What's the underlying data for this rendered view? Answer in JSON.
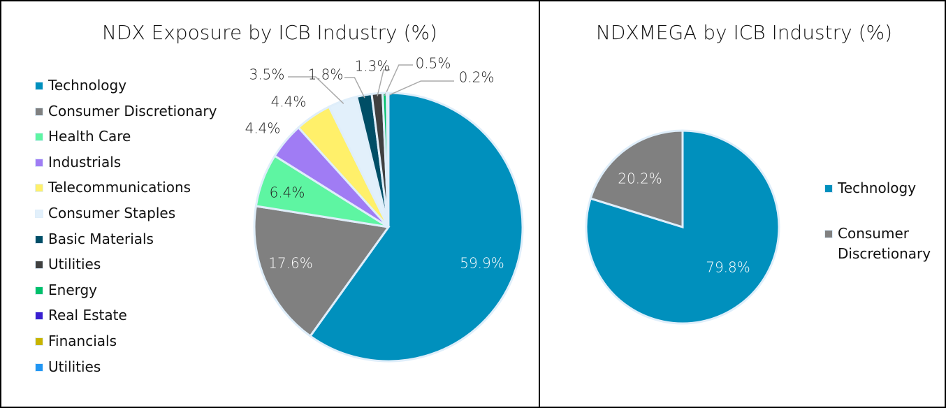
{
  "chart_data": [
    {
      "type": "pie",
      "title": "NDX Exposure by ICB Industry (%)",
      "categories": [
        "Technology",
        "Consumer Discretionary",
        "Health Care",
        "Industrials",
        "Telecommunications",
        "Consumer Staples",
        "Basic Materials",
        "Utilities",
        "Energy",
        "Real Estate",
        "Financials",
        "Utilities"
      ],
      "values": [
        59.9,
        17.6,
        6.4,
        4.4,
        4.4,
        3.5,
        1.8,
        1.3,
        0.5,
        0.2,
        0,
        0
      ],
      "value_labels": [
        "59.9%",
        "17.6%",
        "6.4%",
        "4.4%",
        "4.4%",
        "3.5%",
        "1.8%",
        "1.3%",
        "0.5%",
        "0.2%",
        null,
        null
      ],
      "colors": [
        "#0090bd",
        "#808080",
        "#5ef5a2",
        "#a07cf4",
        "#fff06a",
        "#e2f0fb",
        "#004e66",
        "#404040",
        "#00c06a",
        "#3a1fd0",
        "#c8b400",
        "#2196f3"
      ],
      "legend": "left"
    },
    {
      "type": "pie",
      "title": "NDXMEGA by ICB Industry (%)",
      "categories": [
        "Technology",
        "Consumer Discretionary"
      ],
      "values": [
        79.8,
        20.2
      ],
      "value_labels": [
        "79.8%",
        "20.2%"
      ],
      "colors": [
        "#0090bd",
        "#808080"
      ],
      "legend": "right"
    }
  ]
}
